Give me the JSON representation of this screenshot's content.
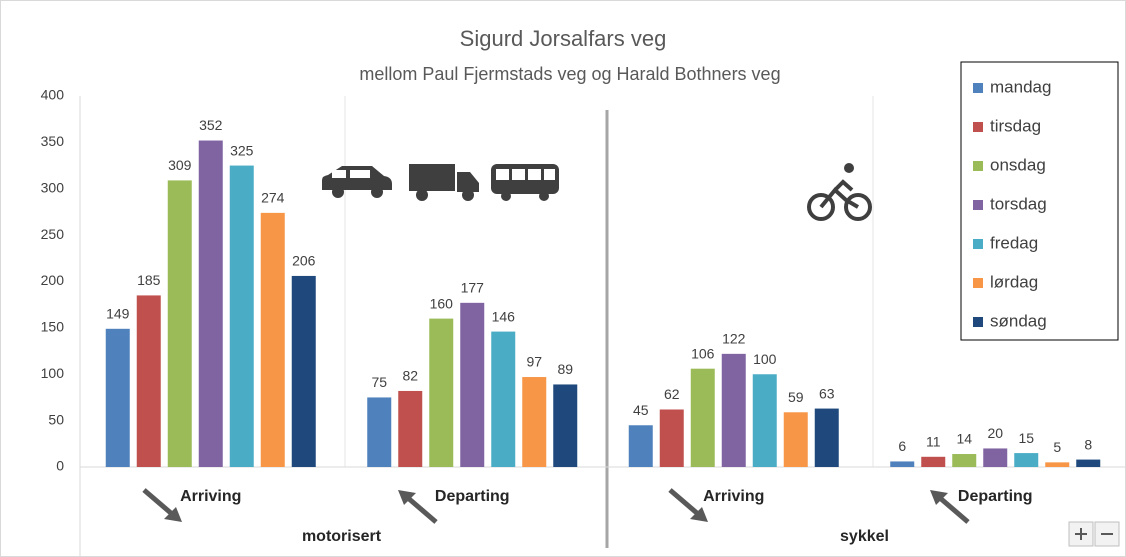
{
  "chart_data": {
    "type": "bar",
    "title": "Sigurd Jorsalfars veg",
    "subtitle": "mellom Paul Fjermstads veg og Harald Bothners veg",
    "categories": [
      "Arriving",
      "Departing",
      "Arriving",
      "Departing"
    ],
    "category_groups": [
      "motorisert",
      "sykkel"
    ],
    "series": [
      {
        "name": "mandag",
        "color": "#4f81bd",
        "values": [
          149,
          75,
          45,
          6
        ]
      },
      {
        "name": "tirsdag",
        "color": "#c0504d",
        "values": [
          185,
          82,
          62,
          11
        ]
      },
      {
        "name": "onsdag",
        "color": "#9bbb59",
        "values": [
          309,
          160,
          106,
          14
        ]
      },
      {
        "name": "torsdag",
        "color": "#8064a2",
        "values": [
          352,
          177,
          122,
          20
        ]
      },
      {
        "name": "fredag",
        "color": "#4bacc6",
        "values": [
          325,
          146,
          100,
          15
        ]
      },
      {
        "name": "lørdag",
        "color": "#f79646",
        "values": [
          274,
          97,
          59,
          5
        ]
      },
      {
        "name": "søndag",
        "color": "#1f497d",
        "values": [
          206,
          89,
          63,
          8
        ]
      }
    ],
    "ylim": [
      0,
      400
    ],
    "yticks": [
      0,
      50,
      100,
      150,
      200,
      250,
      300,
      350,
      400
    ],
    "grid": false,
    "legend": "right"
  }
}
